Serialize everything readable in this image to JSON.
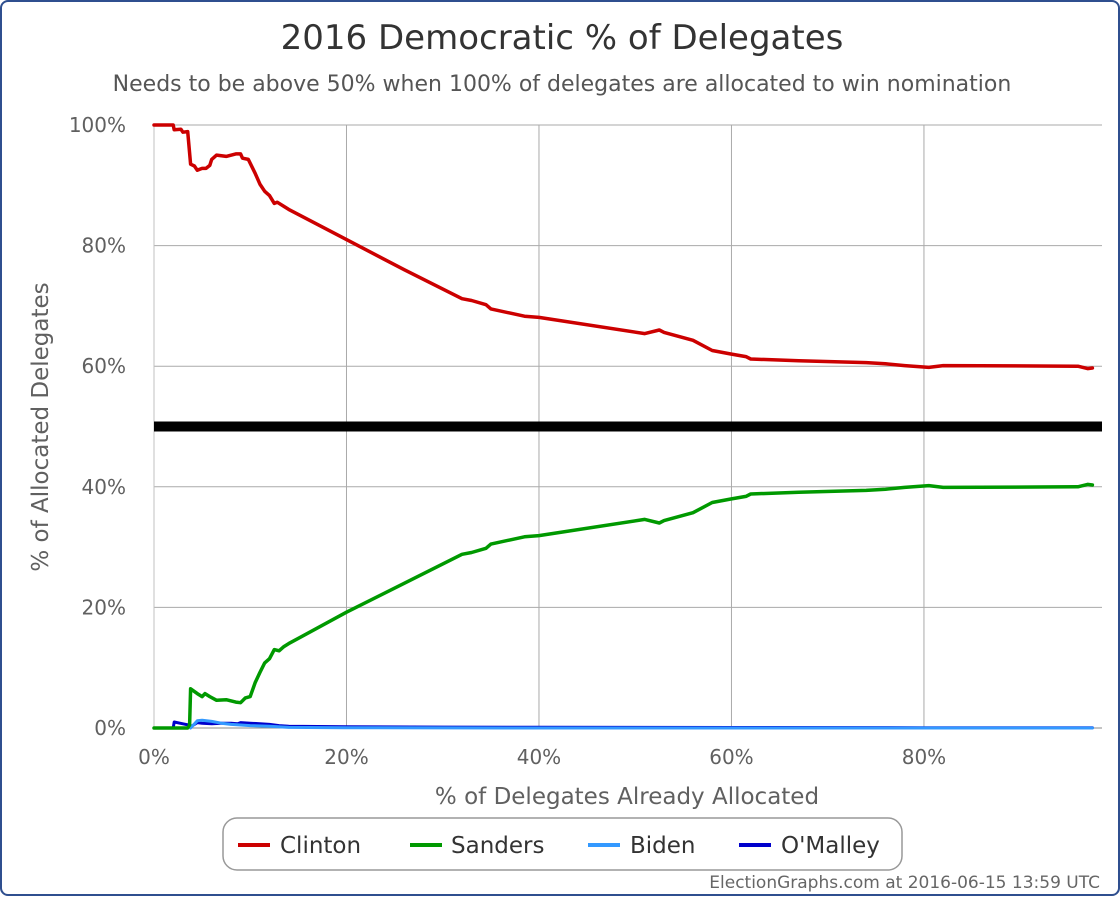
{
  "chart_data": {
    "type": "line",
    "title": "2016 Democratic % of Delegates",
    "subtitle": "Needs to be above 50% when 100% of delegates are allocated to win nomination",
    "xlabel": "% of Delegates Already Allocated",
    "ylabel": "% of Allocated Delegates",
    "xlim": [
      0,
      98.5
    ],
    "ylim": [
      0,
      100
    ],
    "x_ticks": [
      "0%",
      "20%",
      "40%",
      "60%",
      "80%"
    ],
    "y_ticks": [
      "0%",
      "20%",
      "40%",
      "60%",
      "80%",
      "100%"
    ],
    "threshold": {
      "value": 50,
      "color": "#000000"
    },
    "grid": true,
    "legend_position": "bottom-center",
    "series": [
      {
        "name": "Clinton",
        "color": "#cc0000",
        "points": [
          [
            0,
            100
          ],
          [
            2,
            100
          ],
          [
            2.1,
            99.2
          ],
          [
            2.8,
            99.3
          ],
          [
            3,
            98.8
          ],
          [
            3.5,
            98.9
          ],
          [
            3.8,
            93.5
          ],
          [
            4.2,
            93.2
          ],
          [
            4.5,
            92.5
          ],
          [
            5,
            92.8
          ],
          [
            5.4,
            92.8
          ],
          [
            5.8,
            93.3
          ],
          [
            6,
            94.3
          ],
          [
            6.5,
            95
          ],
          [
            7.5,
            94.8
          ],
          [
            8.5,
            95.2
          ],
          [
            9,
            95.2
          ],
          [
            9.2,
            94.5
          ],
          [
            9.8,
            94.3
          ],
          [
            10.5,
            92
          ],
          [
            11,
            90.2
          ],
          [
            11.5,
            89
          ],
          [
            12,
            88.3
          ],
          [
            12.5,
            87
          ],
          [
            12.8,
            87.2
          ],
          [
            13.5,
            86.5
          ],
          [
            14,
            86
          ],
          [
            20,
            81
          ],
          [
            26,
            76
          ],
          [
            32,
            71.2
          ],
          [
            33,
            70.9
          ],
          [
            34.5,
            70.2
          ],
          [
            35,
            69.5
          ],
          [
            37,
            68.8
          ],
          [
            38.5,
            68.3
          ],
          [
            40,
            68.1
          ],
          [
            51,
            65.4
          ],
          [
            52.5,
            66
          ],
          [
            53,
            65.6
          ],
          [
            56,
            64.3
          ],
          [
            58,
            62.6
          ],
          [
            60,
            62
          ],
          [
            61.5,
            61.6
          ],
          [
            62,
            61.2
          ],
          [
            67,
            60.9
          ],
          [
            74,
            60.6
          ],
          [
            76,
            60.4
          ],
          [
            78,
            60.1
          ],
          [
            80.5,
            59.8
          ],
          [
            82,
            60.1
          ],
          [
            96,
            60
          ],
          [
            97,
            59.6
          ],
          [
            97.5,
            59.7
          ]
        ]
      },
      {
        "name": "Sanders",
        "color": "#009900",
        "points": [
          [
            0,
            0
          ],
          [
            3.5,
            0
          ],
          [
            3.7,
            0.5
          ],
          [
            3.8,
            6.5
          ],
          [
            4.5,
            5.7
          ],
          [
            5,
            5.2
          ],
          [
            5.3,
            5.7
          ],
          [
            5.8,
            5.2
          ],
          [
            6.5,
            4.6
          ],
          [
            7.5,
            4.7
          ],
          [
            8.5,
            4.3
          ],
          [
            9,
            4.2
          ],
          [
            9.5,
            5
          ],
          [
            10,
            5.2
          ],
          [
            10.5,
            7.5
          ],
          [
            11,
            9.2
          ],
          [
            11.5,
            10.8
          ],
          [
            12,
            11.5
          ],
          [
            12.5,
            13
          ],
          [
            13,
            12.8
          ],
          [
            13.5,
            13.5
          ],
          [
            14,
            14
          ],
          [
            20,
            19.2
          ],
          [
            26,
            24
          ],
          [
            32,
            28.8
          ],
          [
            33,
            29.1
          ],
          [
            34.5,
            29.8
          ],
          [
            35,
            30.5
          ],
          [
            37,
            31.2
          ],
          [
            38.5,
            31.7
          ],
          [
            40,
            31.9
          ],
          [
            51,
            34.6
          ],
          [
            52.5,
            34
          ],
          [
            53,
            34.4
          ],
          [
            56,
            35.7
          ],
          [
            58,
            37.4
          ],
          [
            60,
            38
          ],
          [
            61.5,
            38.4
          ],
          [
            62,
            38.8
          ],
          [
            67,
            39.1
          ],
          [
            74,
            39.4
          ],
          [
            76,
            39.6
          ],
          [
            78,
            39.9
          ],
          [
            80.5,
            40.2
          ],
          [
            82,
            39.9
          ],
          [
            96,
            40
          ],
          [
            97,
            40.4
          ],
          [
            97.5,
            40.3
          ]
        ]
      },
      {
        "name": "Biden",
        "color": "#3399ff",
        "points": [
          [
            3.8,
            0
          ],
          [
            4.5,
            1.2
          ],
          [
            5,
            1.3
          ],
          [
            6,
            1.1
          ],
          [
            7,
            0.8
          ],
          [
            8,
            0.6
          ],
          [
            10,
            0.4
          ],
          [
            12,
            0.3
          ],
          [
            14,
            0.1
          ],
          [
            20,
            0.05
          ],
          [
            40,
            0
          ],
          [
            97.5,
            0
          ]
        ]
      },
      {
        "name": "O'Malley",
        "color": "#0000cc",
        "points": [
          [
            2,
            0
          ],
          [
            2.1,
            1
          ],
          [
            3,
            0.7
          ],
          [
            3.6,
            0.5
          ],
          [
            3.8,
            0.2
          ],
          [
            4.5,
            0.9
          ],
          [
            5,
            0.8
          ],
          [
            6,
            0.7
          ],
          [
            7,
            0.8
          ],
          [
            8,
            0.8
          ],
          [
            8.7,
            0.7
          ],
          [
            9,
            0.9
          ],
          [
            10,
            0.8
          ],
          [
            11,
            0.7
          ],
          [
            12,
            0.6
          ],
          [
            13,
            0.4
          ],
          [
            14,
            0.3
          ],
          [
            20,
            0.2
          ],
          [
            30,
            0.15
          ],
          [
            40,
            0.12
          ],
          [
            60,
            0.08
          ],
          [
            80,
            0.05
          ],
          [
            97.5,
            0.04
          ]
        ]
      }
    ]
  },
  "credit": "ElectionGraphs.com at 2016-06-15 13:59 UTC"
}
